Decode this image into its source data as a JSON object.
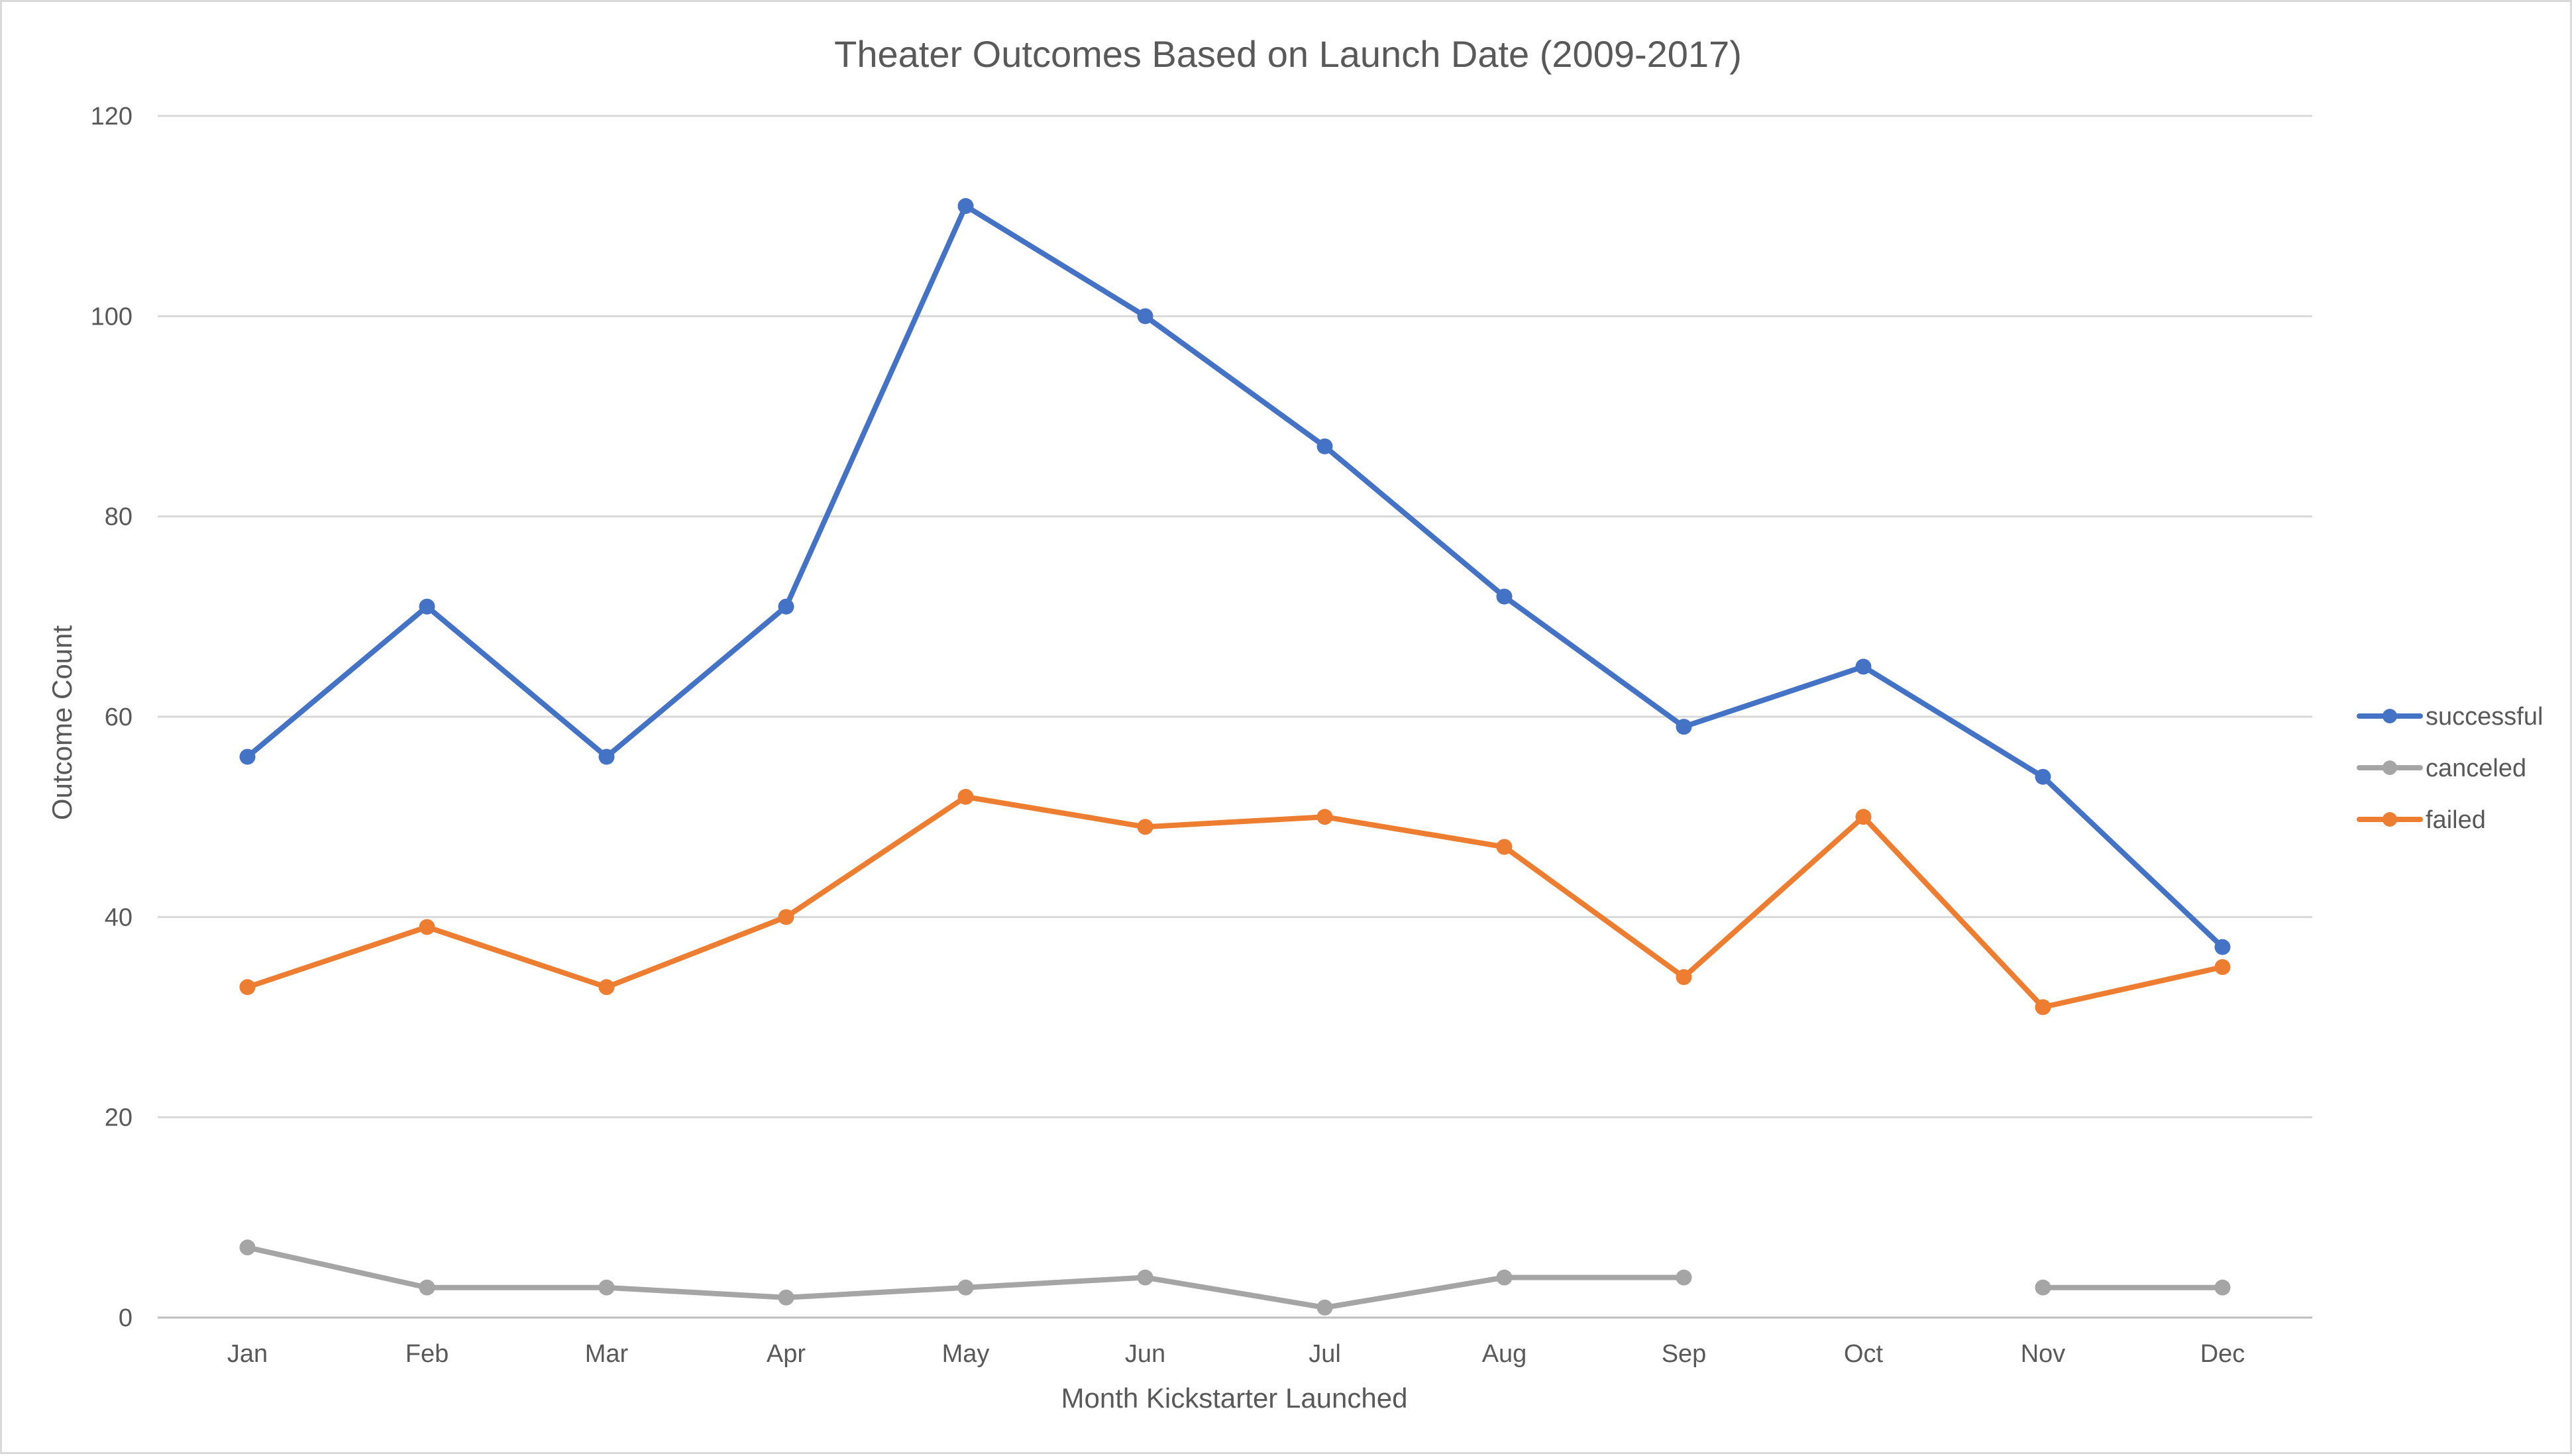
{
  "chart_data": {
    "type": "line",
    "title": "Theater Outcomes Based on Launch Date (2009-2017)",
    "xlabel": "Month Kickstarter Launched",
    "ylabel": "Outcome Count",
    "categories": [
      "Jan",
      "Feb",
      "Mar",
      "Apr",
      "May",
      "Jun",
      "Jul",
      "Aug",
      "Sep",
      "Oct",
      "Nov",
      "Dec"
    ],
    "ylim": [
      0,
      120
    ],
    "yticks": [
      "0",
      "20",
      "40",
      "60",
      "80",
      "100",
      "120"
    ],
    "grid": true,
    "legend_position": "right",
    "series": [
      {
        "name": "successful",
        "color": "#4472c4",
        "values": [
          56,
          71,
          56,
          71,
          111,
          100,
          87,
          72,
          59,
          65,
          54,
          37
        ]
      },
      {
        "name": "canceled",
        "color": "#a5a5a5",
        "values": [
          7,
          3,
          3,
          2,
          3,
          4,
          1,
          4,
          4,
          null,
          3,
          3
        ]
      },
      {
        "name": "failed",
        "color": "#ed7d31",
        "values": [
          33,
          39,
          33,
          40,
          52,
          49,
          50,
          47,
          34,
          50,
          31,
          35
        ]
      }
    ]
  }
}
